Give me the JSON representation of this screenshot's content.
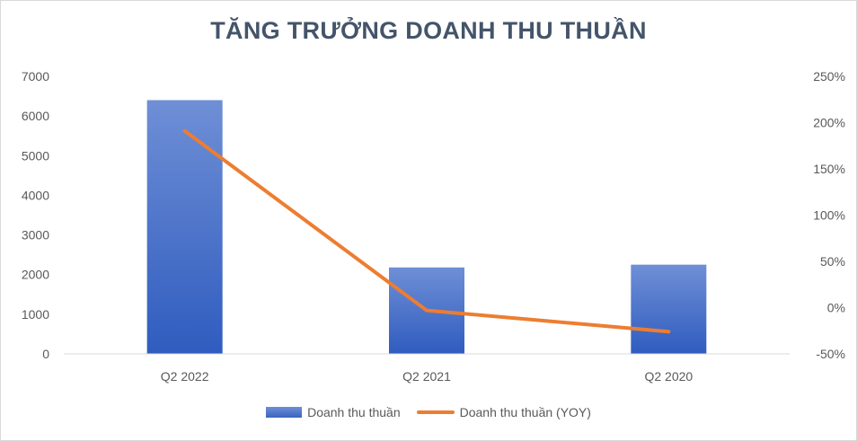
{
  "chart_data": {
    "type": "bar",
    "title": "TĂNG TRƯỞNG DOANH THU THUẦN",
    "categories": [
      "Q2 2022",
      "Q2 2021",
      "Q2 2020"
    ],
    "series": [
      {
        "name": "Doanh thu thuần",
        "type": "bar",
        "axis": "left",
        "values": [
          6400,
          2180,
          2250
        ],
        "color_top": "#6f8fd6",
        "color_bottom": "#2f5cbf"
      },
      {
        "name": "Doanh thu thuần (YOY)",
        "type": "line",
        "axis": "right",
        "values": [
          1.91,
          -0.03,
          -0.26
        ],
        "color": "#ed7d31"
      }
    ],
    "y_left": {
      "lim": [
        0,
        7000
      ],
      "ticks": [
        0,
        1000,
        2000,
        3000,
        4000,
        5000,
        6000,
        7000
      ],
      "tick_labels": [
        "0",
        "1000",
        "2000",
        "3000",
        "4000",
        "5000",
        "6000",
        "7000"
      ]
    },
    "y_right": {
      "lim": [
        -0.5,
        2.5
      ],
      "ticks": [
        -0.5,
        0,
        0.5,
        1.0,
        1.5,
        2.0,
        2.5
      ],
      "tick_labels": [
        "-50%",
        "0%",
        "50%",
        "100%",
        "150%",
        "200%",
        "250%"
      ]
    },
    "grid": false,
    "legend_position": "bottom"
  }
}
